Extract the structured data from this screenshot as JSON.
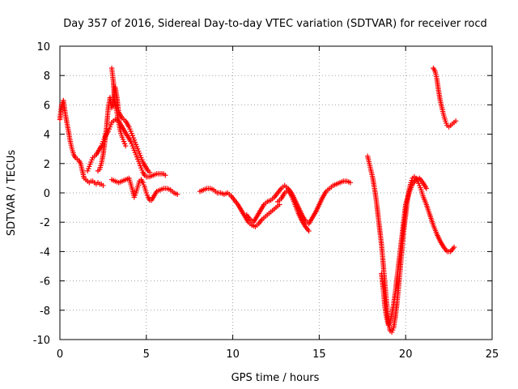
{
  "chart_data": {
    "type": "scatter",
    "title": "Day 357 of 2016, Sidereal Day-to-day VTEC variation (SDTVAR) for receiver rocd",
    "xlabel": "GPS time / hours",
    "ylabel": "SDTVAR / TECUs",
    "xlim": [
      0,
      25
    ],
    "ylim": [
      -10,
      10
    ],
    "xticks": [
      "0",
      "5",
      "10",
      "15",
      "20",
      "25"
    ],
    "yticks": [
      "10",
      "8",
      "6",
      "4",
      "2",
      "0",
      "-2",
      "-4",
      "-6",
      "-8",
      "-10"
    ],
    "grid": true,
    "marker": "+",
    "color": "#ff0000",
    "series": [
      {
        "points": [
          [
            0.0,
            5.0
          ],
          [
            0.1,
            6.0
          ],
          [
            0.2,
            6.3
          ],
          [
            0.3,
            5.5
          ],
          [
            0.4,
            4.8
          ],
          [
            0.5,
            4.2
          ],
          [
            0.6,
            3.5
          ],
          [
            0.7,
            3.0
          ],
          [
            0.8,
            2.6
          ],
          [
            0.9,
            2.4
          ],
          [
            1.0,
            2.3
          ],
          [
            1.1,
            2.2
          ],
          [
            1.2,
            2.0
          ],
          [
            1.3,
            1.5
          ],
          [
            1.4,
            1.0
          ],
          [
            1.5,
            0.9
          ],
          [
            1.6,
            0.8
          ],
          [
            1.7,
            0.7
          ],
          [
            1.8,
            0.8
          ],
          [
            1.9,
            0.8
          ],
          [
            2.0,
            0.7
          ],
          [
            2.1,
            0.6
          ],
          [
            2.2,
            0.7
          ],
          [
            2.3,
            0.6
          ],
          [
            2.4,
            0.6
          ],
          [
            2.5,
            0.5
          ]
        ]
      },
      {
        "points": [
          [
            1.6,
            1.5
          ],
          [
            1.7,
            1.8
          ],
          [
            1.8,
            2.1
          ],
          [
            1.9,
            2.4
          ],
          [
            2.0,
            2.5
          ],
          [
            2.1,
            2.6
          ],
          [
            2.2,
            2.8
          ],
          [
            2.3,
            3.0
          ],
          [
            2.4,
            3.2
          ],
          [
            2.5,
            3.5
          ],
          [
            2.6,
            3.8
          ],
          [
            2.7,
            4.0
          ],
          [
            2.8,
            4.2
          ],
          [
            2.9,
            4.5
          ],
          [
            3.0,
            4.8
          ],
          [
            3.1,
            4.9
          ],
          [
            3.2,
            5.0
          ],
          [
            3.3,
            5.0
          ],
          [
            3.4,
            4.9
          ],
          [
            3.5,
            4.7
          ],
          [
            3.6,
            4.5
          ],
          [
            3.7,
            4.3
          ],
          [
            3.8,
            4.1
          ],
          [
            3.9,
            3.9
          ],
          [
            4.0,
            3.7
          ],
          [
            4.1,
            3.5
          ],
          [
            4.2,
            3.2
          ],
          [
            4.3,
            2.9
          ],
          [
            4.4,
            2.6
          ],
          [
            4.5,
            2.3
          ],
          [
            4.6,
            2.0
          ],
          [
            4.7,
            1.7
          ],
          [
            4.8,
            1.4
          ],
          [
            4.9,
            1.2
          ],
          [
            5.0,
            1.1
          ],
          [
            5.2,
            1.1
          ],
          [
            5.4,
            1.2
          ],
          [
            5.6,
            1.3
          ],
          [
            5.8,
            1.3
          ],
          [
            6.0,
            1.3
          ],
          [
            6.1,
            1.2
          ]
        ]
      },
      {
        "points": [
          [
            2.2,
            1.5
          ],
          [
            2.3,
            1.6
          ],
          [
            2.4,
            2.0
          ],
          [
            2.5,
            2.6
          ],
          [
            2.6,
            3.5
          ],
          [
            2.7,
            4.5
          ],
          [
            2.8,
            5.8
          ],
          [
            2.9,
            6.5
          ],
          [
            3.0,
            5.8
          ],
          [
            3.1,
            6.3
          ],
          [
            3.2,
            7.2
          ],
          [
            3.3,
            6.5
          ],
          [
            3.4,
            5.5
          ],
          [
            3.5,
            5.3
          ],
          [
            3.6,
            5.1
          ],
          [
            3.7,
            5.0
          ],
          [
            3.8,
            4.9
          ],
          [
            3.9,
            4.7
          ],
          [
            4.0,
            4.5
          ],
          [
            4.1,
            4.2
          ],
          [
            4.2,
            3.9
          ],
          [
            4.3,
            3.6
          ],
          [
            4.4,
            3.3
          ],
          [
            4.5,
            3.0
          ],
          [
            4.6,
            2.7
          ],
          [
            4.7,
            2.4
          ],
          [
            4.8,
            2.1
          ],
          [
            4.9,
            1.9
          ],
          [
            5.0,
            1.7
          ],
          [
            5.1,
            1.5
          ],
          [
            5.2,
            1.4
          ]
        ]
      },
      {
        "points": [
          [
            3.0,
            8.5
          ],
          [
            3.05,
            8.0
          ],
          [
            3.1,
            7.5
          ],
          [
            3.15,
            6.5
          ],
          [
            3.2,
            6.0
          ],
          [
            3.3,
            5.5
          ],
          [
            3.4,
            4.8
          ],
          [
            3.5,
            4.2
          ],
          [
            3.6,
            3.8
          ],
          [
            3.7,
            3.5
          ],
          [
            3.8,
            3.2
          ]
        ]
      },
      {
        "points": [
          [
            3.0,
            0.9
          ],
          [
            3.2,
            0.8
          ],
          [
            3.4,
            0.7
          ],
          [
            3.6,
            0.8
          ],
          [
            3.8,
            0.9
          ],
          [
            4.0,
            1.0
          ],
          [
            4.1,
            0.6
          ],
          [
            4.2,
            0.2
          ],
          [
            4.3,
            -0.3
          ],
          [
            4.4,
            0.0
          ],
          [
            4.5,
            0.4
          ],
          [
            4.6,
            0.8
          ],
          [
            4.7,
            0.9
          ],
          [
            4.8,
            0.7
          ],
          [
            4.9,
            0.4
          ],
          [
            5.0,
            0.0
          ],
          [
            5.1,
            -0.3
          ],
          [
            5.2,
            -0.5
          ],
          [
            5.3,
            -0.5
          ],
          [
            5.4,
            -0.3
          ],
          [
            5.5,
            -0.1
          ],
          [
            5.6,
            0.1
          ],
          [
            5.8,
            0.2
          ],
          [
            6.0,
            0.3
          ],
          [
            6.2,
            0.3
          ],
          [
            6.4,
            0.2
          ],
          [
            6.6,
            0.0
          ],
          [
            6.8,
            -0.1
          ]
        ]
      },
      {
        "points": [
          [
            8.1,
            0.1
          ],
          [
            8.3,
            0.2
          ],
          [
            8.5,
            0.3
          ],
          [
            8.7,
            0.3
          ],
          [
            8.9,
            0.2
          ],
          [
            9.1,
            0.0
          ],
          [
            9.3,
            0.0
          ],
          [
            9.5,
            -0.1
          ],
          [
            9.7,
            0.0
          ],
          [
            9.9,
            -0.2
          ],
          [
            10.1,
            -0.5
          ],
          [
            10.3,
            -0.8
          ],
          [
            10.5,
            -1.2
          ],
          [
            10.7,
            -1.6
          ],
          [
            10.9,
            -2.0
          ],
          [
            11.1,
            -2.2
          ],
          [
            11.3,
            -2.3
          ],
          [
            11.5,
            -2.1
          ],
          [
            11.7,
            -1.8
          ],
          [
            11.9,
            -1.6
          ],
          [
            12.1,
            -1.4
          ],
          [
            12.3,
            -1.2
          ],
          [
            12.5,
            -1.0
          ],
          [
            12.7,
            -0.8
          ]
        ]
      },
      {
        "points": [
          [
            10.8,
            -1.5
          ],
          [
            11.0,
            -1.8
          ],
          [
            11.2,
            -2.0
          ],
          [
            11.4,
            -1.6
          ],
          [
            11.6,
            -1.2
          ],
          [
            11.8,
            -0.8
          ],
          [
            12.0,
            -0.6
          ],
          [
            12.2,
            -0.5
          ],
          [
            12.4,
            -0.3
          ],
          [
            12.6,
            0.0
          ],
          [
            12.8,
            0.3
          ],
          [
            13.0,
            0.5
          ],
          [
            13.2,
            0.3
          ],
          [
            13.4,
            0.0
          ],
          [
            13.6,
            -0.5
          ],
          [
            13.8,
            -1.0
          ],
          [
            14.0,
            -1.5
          ],
          [
            14.2,
            -1.9
          ],
          [
            14.4,
            -2.1
          ],
          [
            14.6,
            -1.7
          ],
          [
            14.8,
            -1.3
          ],
          [
            15.0,
            -0.8
          ],
          [
            15.2,
            -0.3
          ],
          [
            15.4,
            0.1
          ],
          [
            15.6,
            0.3
          ],
          [
            15.8,
            0.5
          ],
          [
            16.0,
            0.6
          ],
          [
            16.2,
            0.7
          ],
          [
            16.4,
            0.8
          ],
          [
            16.6,
            0.8
          ],
          [
            16.8,
            0.7
          ]
        ]
      },
      {
        "points": [
          [
            12.6,
            -0.6
          ],
          [
            12.8,
            -0.4
          ],
          [
            13.0,
            0.0
          ],
          [
            13.2,
            0.2
          ],
          [
            13.4,
            -0.2
          ],
          [
            13.6,
            -0.8
          ],
          [
            13.8,
            -1.4
          ],
          [
            14.0,
            -1.9
          ],
          [
            14.2,
            -2.3
          ],
          [
            14.4,
            -2.6
          ]
        ]
      },
      {
        "points": [
          [
            17.8,
            2.5
          ],
          [
            17.9,
            2.0
          ],
          [
            18.0,
            1.5
          ],
          [
            18.1,
            1.0
          ],
          [
            18.2,
            0.3
          ],
          [
            18.3,
            -0.5
          ],
          [
            18.4,
            -1.5
          ],
          [
            18.5,
            -2.5
          ],
          [
            18.6,
            -3.5
          ],
          [
            18.7,
            -4.8
          ],
          [
            18.8,
            -6.2
          ],
          [
            18.9,
            -7.5
          ],
          [
            19.0,
            -8.8
          ],
          [
            19.1,
            -9.4
          ],
          [
            19.2,
            -9.5
          ],
          [
            19.3,
            -9.2
          ],
          [
            19.4,
            -8.5
          ],
          [
            19.5,
            -7.5
          ],
          [
            19.6,
            -6.3
          ],
          [
            19.7,
            -5.0
          ],
          [
            19.8,
            -3.7
          ],
          [
            19.9,
            -2.5
          ],
          [
            20.0,
            -1.5
          ],
          [
            20.1,
            -0.5
          ],
          [
            20.2,
            0.2
          ],
          [
            20.3,
            0.7
          ],
          [
            20.4,
            1.0
          ],
          [
            20.5,
            1.1
          ],
          [
            20.6,
            1.0
          ],
          [
            20.7,
            0.8
          ],
          [
            20.8,
            0.5
          ],
          [
            20.9,
            0.2
          ],
          [
            21.0,
            -0.2
          ],
          [
            21.2,
            -0.8
          ],
          [
            21.4,
            -1.5
          ],
          [
            21.6,
            -2.2
          ],
          [
            21.8,
            -2.8
          ],
          [
            22.0,
            -3.3
          ],
          [
            22.2,
            -3.7
          ],
          [
            22.4,
            -4.0
          ],
          [
            22.6,
            -4.0
          ],
          [
            22.8,
            -3.7
          ]
        ]
      },
      {
        "points": [
          [
            18.6,
            -5.5
          ],
          [
            18.7,
            -6.5
          ],
          [
            18.8,
            -7.8
          ],
          [
            18.9,
            -8.5
          ],
          [
            19.0,
            -9.0
          ],
          [
            19.1,
            -8.8
          ],
          [
            19.2,
            -8.3
          ],
          [
            19.3,
            -7.6
          ],
          [
            19.4,
            -6.8
          ],
          [
            19.5,
            -5.8
          ],
          [
            19.6,
            -4.8
          ],
          [
            19.7,
            -3.8
          ],
          [
            19.8,
            -2.8
          ],
          [
            19.9,
            -1.8
          ],
          [
            20.0,
            -0.8
          ],
          [
            20.2,
            0.0
          ],
          [
            20.4,
            0.6
          ],
          [
            20.6,
            0.9
          ],
          [
            20.8,
            1.0
          ],
          [
            21.0,
            0.7
          ],
          [
            21.2,
            0.3
          ]
        ]
      },
      {
        "points": [
          [
            21.6,
            8.5
          ],
          [
            21.7,
            8.3
          ],
          [
            21.8,
            7.8
          ],
          [
            21.9,
            7.0
          ],
          [
            22.0,
            6.3
          ],
          [
            22.1,
            5.8
          ],
          [
            22.2,
            5.3
          ],
          [
            22.3,
            4.9
          ],
          [
            22.4,
            4.6
          ],
          [
            22.5,
            4.5
          ],
          [
            22.6,
            4.6
          ],
          [
            22.7,
            4.7
          ],
          [
            22.8,
            4.8
          ],
          [
            22.9,
            4.9
          ]
        ]
      }
    ]
  }
}
